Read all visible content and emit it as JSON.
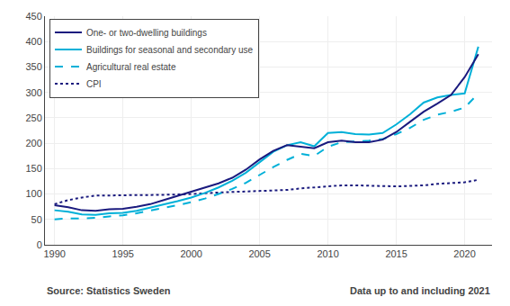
{
  "chart_data": {
    "type": "line",
    "x": [
      1990,
      1991,
      1992,
      1993,
      1994,
      1995,
      1996,
      1997,
      1998,
      1999,
      2000,
      2001,
      2002,
      2003,
      2004,
      2005,
      2006,
      2007,
      2008,
      2009,
      2010,
      2011,
      2012,
      2013,
      2014,
      2015,
      2016,
      2017,
      2018,
      2019,
      2020,
      2021
    ],
    "series": [
      {
        "name": "One- or two-dwelling buildings",
        "color": "#1a1a7e",
        "line_style": "solid",
        "values": [
          78,
          74,
          68,
          67,
          70,
          71,
          75,
          80,
          88,
          96,
          104,
          112,
          121,
          132,
          148,
          168,
          185,
          196,
          193,
          190,
          202,
          205,
          202,
          202,
          207,
          222,
          242,
          262,
          278,
          295,
          330,
          375
        ]
      },
      {
        "name": "Buildings for seasonal and secondary use",
        "color": "#00b0d8",
        "line_style": "solid",
        "values": [
          68,
          65,
          60,
          59,
          62,
          63,
          67,
          73,
          79,
          86,
          93,
          102,
          113,
          126,
          142,
          163,
          183,
          196,
          202,
          194,
          220,
          222,
          218,
          217,
          220,
          237,
          257,
          280,
          290,
          295,
          298,
          390
        ]
      },
      {
        "name": "Agricultural real estate",
        "color": "#00b0d8",
        "line_style": "dash",
        "values": [
          50,
          52,
          52,
          53,
          56,
          58,
          62,
          67,
          72,
          78,
          84,
          91,
          100,
          110,
          122,
          138,
          153,
          167,
          179,
          175,
          193,
          202,
          203,
          205,
          208,
          218,
          230,
          246,
          256,
          262,
          270,
          298
        ]
      },
      {
        "name": "CPI",
        "color": "#1a1a7e",
        "line_style": "dot",
        "values": [
          80,
          88,
          93,
          97,
          97,
          98,
          98,
          98,
          98,
          99,
          100,
          102,
          103,
          104,
          105,
          106,
          107,
          108,
          111,
          113,
          114,
          117,
          117,
          116,
          115,
          115,
          116,
          117,
          120,
          122,
          123,
          128
        ]
      }
    ],
    "xlim": [
      1989.3,
      2022
    ],
    "xticks": [
      1990,
      1995,
      2000,
      2005,
      2010,
      2015,
      2020
    ],
    "ylim": [
      0,
      450
    ],
    "yticks": [
      0,
      50,
      100,
      150,
      200,
      250,
      300,
      350,
      400,
      450
    ],
    "grid": true,
    "legend": "upper left",
    "annotations": [
      "Source: Statistics Sweden",
      "Data up to and including 2021"
    ]
  }
}
